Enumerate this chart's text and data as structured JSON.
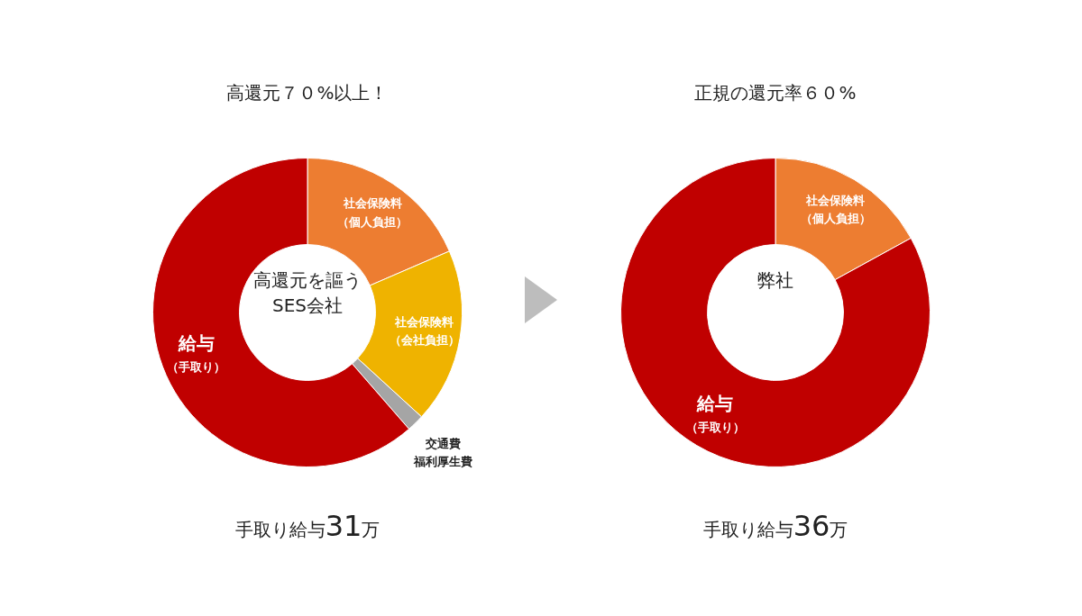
{
  "chart_data": [
    {
      "type": "donut",
      "title": "高還元７０%以上！",
      "categories": [
        "社会保険料（個人負担）",
        "社会保険料（会社負担）",
        "交通費福利厚生費",
        "給与（手取り）"
      ],
      "values": [
        18.5,
        18.3,
        1.8,
        61.4
      ],
      "colors": [
        "#ed7d31",
        "#efb300",
        "#a5a5a5",
        "#c00000"
      ],
      "legend": false,
      "annotations": [
        "高還元を謳う\nSES会社",
        "手取り給与31万"
      ]
    },
    {
      "type": "donut",
      "title": "正規の還元率６０%",
      "categories": [
        "社会保険料（個人負担）",
        "給与（手取り）"
      ],
      "values": [
        17,
        83
      ],
      "colors": [
        "#ed7d31",
        "#c00000"
      ],
      "legend": false,
      "annotations": [
        "弊社",
        "手取り給与36万"
      ]
    }
  ]
}
